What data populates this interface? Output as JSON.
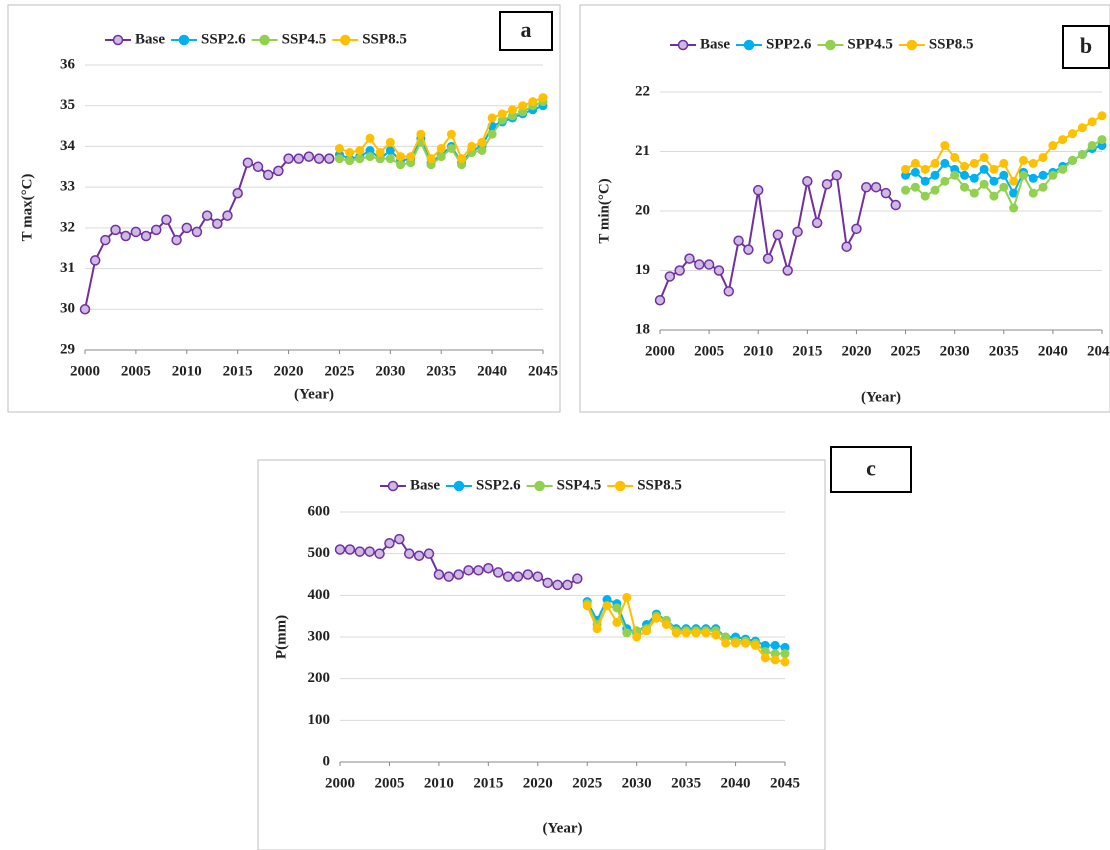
{
  "chart_data": [
    {
      "type": "line",
      "label": "a",
      "ylabel": "T max(°C)",
      "xlabel": "(Year)",
      "x": [
        2000,
        2001,
        2002,
        2003,
        2004,
        2005,
        2006,
        2007,
        2008,
        2009,
        2010,
        2011,
        2012,
        2013,
        2014,
        2015,
        2016,
        2017,
        2018,
        2019,
        2020,
        2021,
        2022,
        2023,
        2024,
        2025,
        2026,
        2027,
        2028,
        2029,
        2030,
        2031,
        2032,
        2033,
        2034,
        2035,
        2036,
        2037,
        2038,
        2039,
        2040,
        2041,
        2042,
        2043,
        2044,
        2045
      ],
      "xlim": [
        2000,
        2045
      ],
      "xticks": [
        2000,
        2005,
        2010,
        2015,
        2020,
        2025,
        2030,
        2035,
        2040,
        2045
      ],
      "ylim": [
        29,
        36
      ],
      "yticks": [
        29,
        30,
        31,
        32,
        33,
        34,
        35,
        36
      ],
      "grid": true,
      "legend": "top",
      "series": [
        {
          "name": "Base",
          "color": "#7030a0",
          "values": [
            30.0,
            31.2,
            31.7,
            31.95,
            31.8,
            31.9,
            31.8,
            31.95,
            32.2,
            31.7,
            32.0,
            31.9,
            32.3,
            32.1,
            32.3,
            32.85,
            33.6,
            33.5,
            33.3,
            33.4,
            33.7,
            33.7,
            33.75,
            33.7,
            33.7,
            null,
            null,
            null,
            null,
            null,
            null,
            null,
            null,
            null,
            null,
            null,
            null,
            null,
            null,
            null,
            null,
            null,
            null,
            null,
            null,
            null
          ]
        },
        {
          "name": "SSP2.6",
          "color": "#00b0f0",
          "values": [
            null,
            null,
            null,
            null,
            null,
            null,
            null,
            null,
            null,
            null,
            null,
            null,
            null,
            null,
            null,
            null,
            null,
            null,
            null,
            null,
            null,
            null,
            null,
            null,
            null,
            33.8,
            33.7,
            33.75,
            33.9,
            33.7,
            33.9,
            33.65,
            33.7,
            34.2,
            33.6,
            33.8,
            34.0,
            33.6,
            33.9,
            34.0,
            34.5,
            34.6,
            34.7,
            34.8,
            34.9,
            35.0
          ]
        },
        {
          "name": "SSP4.5",
          "color": "#92d050",
          "values": [
            null,
            null,
            null,
            null,
            null,
            null,
            null,
            null,
            null,
            null,
            null,
            null,
            null,
            null,
            null,
            null,
            null,
            null,
            null,
            null,
            null,
            null,
            null,
            null,
            null,
            33.7,
            33.65,
            33.7,
            33.75,
            33.7,
            33.7,
            33.55,
            33.6,
            34.1,
            33.55,
            33.75,
            33.95,
            33.55,
            33.85,
            33.9,
            34.3,
            34.65,
            34.75,
            34.85,
            35.0,
            35.1
          ]
        },
        {
          "name": "SSP8.5",
          "color": "#ffc000",
          "values": [
            null,
            null,
            null,
            null,
            null,
            null,
            null,
            null,
            null,
            null,
            null,
            null,
            null,
            null,
            null,
            null,
            null,
            null,
            null,
            null,
            null,
            null,
            null,
            null,
            null,
            33.95,
            33.85,
            33.9,
            34.2,
            33.85,
            34.1,
            33.75,
            33.75,
            34.3,
            33.7,
            33.95,
            34.3,
            33.7,
            34.0,
            34.1,
            34.7,
            34.8,
            34.9,
            35.0,
            35.1,
            35.2
          ]
        }
      ]
    },
    {
      "type": "line",
      "label": "b",
      "ylabel": "T min(°C)",
      "xlabel": "(Year)",
      "x": [
        2000,
        2001,
        2002,
        2003,
        2004,
        2005,
        2006,
        2007,
        2008,
        2009,
        2010,
        2011,
        2012,
        2013,
        2014,
        2015,
        2016,
        2017,
        2018,
        2019,
        2020,
        2021,
        2022,
        2023,
        2024,
        2025,
        2026,
        2027,
        2028,
        2029,
        2030,
        2031,
        2032,
        2033,
        2034,
        2035,
        2036,
        2037,
        2038,
        2039,
        2040,
        2041,
        2042,
        2043,
        2044,
        2045
      ],
      "xlim": [
        2000,
        2045
      ],
      "xticks": [
        2000,
        2005,
        2010,
        2015,
        2020,
        2025,
        2030,
        2035,
        2040,
        2045
      ],
      "ylim": [
        18,
        22
      ],
      "yticks": [
        18,
        19,
        20,
        21,
        22
      ],
      "grid": true,
      "legend": "top",
      "series": [
        {
          "name": "Base",
          "color": "#7030a0",
          "values": [
            18.5,
            18.9,
            19.0,
            19.2,
            19.1,
            19.1,
            19.0,
            18.65,
            19.5,
            19.35,
            20.35,
            19.2,
            19.6,
            19.0,
            19.65,
            20.5,
            19.8,
            20.45,
            20.6,
            19.4,
            19.7,
            20.4,
            20.4,
            20.3,
            20.1,
            null,
            null,
            null,
            null,
            null,
            null,
            null,
            null,
            null,
            null,
            null,
            null,
            null,
            null,
            null,
            null,
            null,
            null,
            null,
            null,
            null
          ]
        },
        {
          "name": "SPP2.6",
          "color": "#00b0f0",
          "values": [
            null,
            null,
            null,
            null,
            null,
            null,
            null,
            null,
            null,
            null,
            null,
            null,
            null,
            null,
            null,
            null,
            null,
            null,
            null,
            null,
            null,
            null,
            null,
            null,
            null,
            20.6,
            20.65,
            20.5,
            20.6,
            20.8,
            20.7,
            20.6,
            20.55,
            20.7,
            20.5,
            20.6,
            20.3,
            20.65,
            20.55,
            20.6,
            20.65,
            20.75,
            20.85,
            20.95,
            21.05,
            21.1
          ]
        },
        {
          "name": "SPP4.5",
          "color": "#92d050",
          "values": [
            null,
            null,
            null,
            null,
            null,
            null,
            null,
            null,
            null,
            null,
            null,
            null,
            null,
            null,
            null,
            null,
            null,
            null,
            null,
            null,
            null,
            null,
            null,
            null,
            null,
            20.35,
            20.4,
            20.25,
            20.35,
            20.5,
            20.6,
            20.4,
            20.3,
            20.45,
            20.25,
            20.4,
            20.05,
            20.6,
            20.3,
            20.4,
            20.6,
            20.7,
            20.85,
            20.95,
            21.1,
            21.2
          ]
        },
        {
          "name": "SSP8.5",
          "color": "#ffc000",
          "values": [
            null,
            null,
            null,
            null,
            null,
            null,
            null,
            null,
            null,
            null,
            null,
            null,
            null,
            null,
            null,
            null,
            null,
            null,
            null,
            null,
            null,
            null,
            null,
            null,
            null,
            20.7,
            20.8,
            20.7,
            20.8,
            21.1,
            20.9,
            20.75,
            20.8,
            20.9,
            20.7,
            20.8,
            20.5,
            20.85,
            20.8,
            20.9,
            21.1,
            21.2,
            21.3,
            21.4,
            21.5,
            21.6
          ]
        }
      ]
    },
    {
      "type": "line",
      "label": "c",
      "ylabel": "P(mm)",
      "xlabel": "(Year)",
      "x": [
        2000,
        2001,
        2002,
        2003,
        2004,
        2005,
        2006,
        2007,
        2008,
        2009,
        2010,
        2011,
        2012,
        2013,
        2014,
        2015,
        2016,
        2017,
        2018,
        2019,
        2020,
        2021,
        2022,
        2023,
        2024,
        2025,
        2026,
        2027,
        2028,
        2029,
        2030,
        2031,
        2032,
        2033,
        2034,
        2035,
        2036,
        2037,
        2038,
        2039,
        2040,
        2041,
        2042,
        2043,
        2044,
        2045
      ],
      "xlim": [
        2000,
        2045
      ],
      "xticks": [
        2000,
        2005,
        2010,
        2015,
        2020,
        2025,
        2030,
        2035,
        2040,
        2045
      ],
      "ylim": [
        0,
        600
      ],
      "yticks": [
        0,
        100,
        200,
        300,
        400,
        500,
        600
      ],
      "grid": true,
      "legend": "top",
      "series": [
        {
          "name": "Base",
          "color": "#7030a0",
          "values": [
            510,
            510,
            505,
            505,
            500,
            525,
            535,
            500,
            495,
            500,
            450,
            445,
            450,
            460,
            460,
            465,
            455,
            445,
            445,
            450,
            445,
            430,
            425,
            425,
            440,
            null,
            null,
            null,
            null,
            null,
            null,
            null,
            null,
            null,
            null,
            null,
            null,
            null,
            null,
            null,
            null,
            null,
            null,
            null,
            null,
            null
          ]
        },
        {
          "name": "SSP2.6",
          "color": "#00b0f0",
          "values": [
            null,
            null,
            null,
            null,
            null,
            null,
            null,
            null,
            null,
            null,
            null,
            null,
            null,
            null,
            null,
            null,
            null,
            null,
            null,
            null,
            null,
            null,
            null,
            null,
            null,
            385,
            340,
            390,
            380,
            320,
            310,
            330,
            355,
            340,
            320,
            320,
            320,
            320,
            320,
            300,
            300,
            295,
            290,
            280,
            280,
            275
          ]
        },
        {
          "name": "SSP4.5",
          "color": "#92d050",
          "values": [
            null,
            null,
            null,
            null,
            null,
            null,
            null,
            null,
            null,
            null,
            null,
            null,
            null,
            null,
            null,
            null,
            null,
            null,
            null,
            null,
            null,
            null,
            null,
            null,
            null,
            380,
            330,
            375,
            370,
            310,
            315,
            320,
            350,
            340,
            315,
            315,
            315,
            315,
            315,
            300,
            290,
            290,
            285,
            265,
            260,
            260
          ]
        },
        {
          "name": "SSP8.5",
          "color": "#ffc000",
          "values": [
            null,
            null,
            null,
            null,
            null,
            null,
            null,
            null,
            null,
            null,
            null,
            null,
            null,
            null,
            null,
            null,
            null,
            null,
            null,
            null,
            null,
            null,
            null,
            null,
            null,
            375,
            320,
            375,
            335,
            395,
            300,
            315,
            345,
            330,
            310,
            310,
            310,
            310,
            305,
            285,
            285,
            285,
            280,
            250,
            245,
            240
          ]
        }
      ]
    }
  ]
}
